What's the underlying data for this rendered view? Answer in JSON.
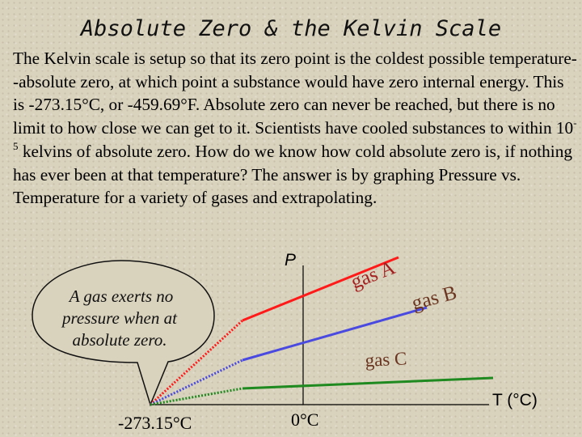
{
  "title": "Absolute Zero & the Kelvin Scale",
  "paragraph": {
    "part1": "The Kelvin scale is setup so that its zero point is the coldest possible temperature--absolute zero, at which point a substance would have zero internal energy.  This is -273.15°C, or -459.69°F. Absolute zero can never be reached, but there is no limit to how close we can get to it. Scientists have cooled substances to within 10",
    "exponent": "-5",
    "part2": " kelvins of absolute zero.  How do we know how cold absolute zero is, if nothing has ever been at that temperature?  The answer is by graphing Pressure vs. Temperature for a variety of gases and extrapolating."
  },
  "callout": {
    "line1": "A gas exerts no",
    "line2": "pressure when at",
    "line3": "absolute zero."
  },
  "graph": {
    "y_axis_label": "P",
    "x_axis_label": "T (°C)",
    "absolute_zero_label": "-273.15°C",
    "zero_label": "0°C",
    "gas_a_label": "gas A",
    "gas_b_label": "gas B",
    "gas_c_label": "gas C",
    "colors": {
      "gas_a": "#ff1a1a",
      "gas_b": "#4a4ae0",
      "gas_c": "#1f8a1f",
      "axes": "#000000"
    }
  }
}
